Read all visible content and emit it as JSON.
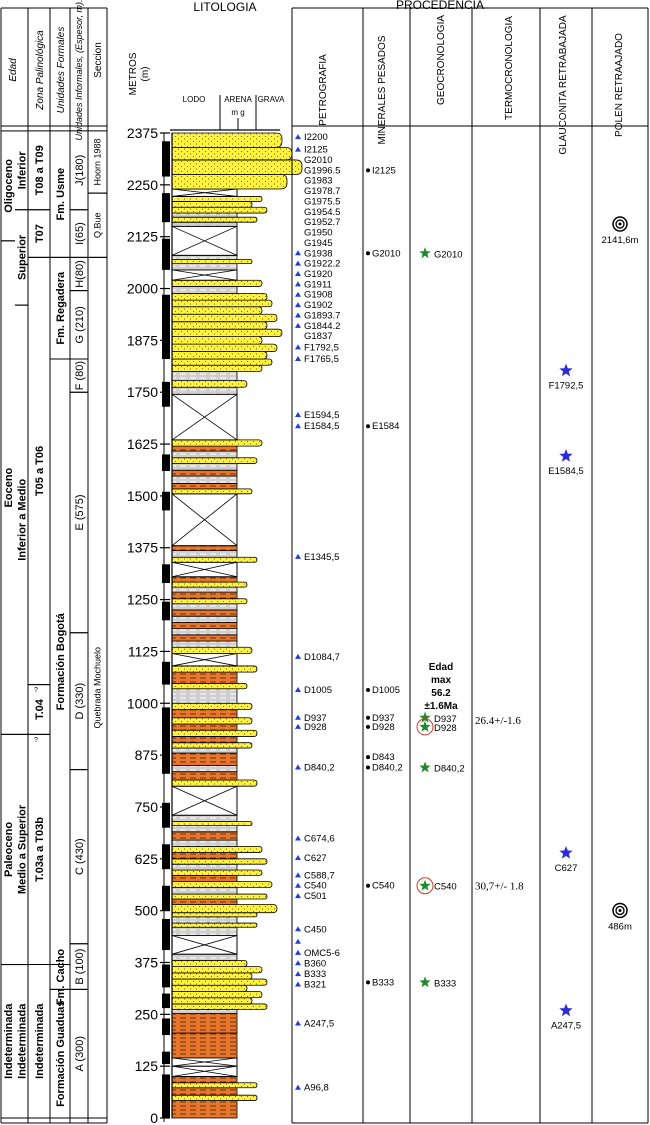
{
  "headers": {
    "litologia": "LITOLOGIA",
    "procedencia": "PROCEDENCIA",
    "edad": "Edad",
    "zona": "Zona Palinológica",
    "formales": "Unidades Formales",
    "informales": "Unidades Informales, (Espesor, m).",
    "seccion": "Seccion",
    "metros": "METROS",
    "metros_unit": "(m)",
    "lodo": "LODO",
    "arena": "ARENA",
    "arena_sub": "m  g",
    "grava": "GRAVA",
    "petrografia": "PETROGRAFIA",
    "minerales": "MINERALES PESADOS",
    "geocronologia": "GEOCRONOLOGIA",
    "termocronologia": "TERMOCRONOLOGIA",
    "glauconita": "GLAUCONITA RETRABAJADA",
    "polen": "POLEN RETRAAJADO"
  },
  "depth_axis": {
    "min": 0,
    "max": 2375,
    "ticks": [
      0,
      125,
      250,
      375,
      500,
      625,
      750,
      875,
      1000,
      1125,
      1250,
      1375,
      1500,
      1625,
      1750,
      1875,
      2000,
      2125,
      2250,
      2375
    ]
  },
  "edad": [
    {
      "label": "Oligoceno",
      "from": 2115,
      "to": 2380
    },
    {
      "label": "Eoceno",
      "from": 925,
      "to": 2115
    },
    {
      "label": "Paleoceno",
      "from": 370,
      "to": 925
    },
    {
      "label": "Indeterminada",
      "from": 0,
      "to": 370
    }
  ],
  "edad_sub": [
    {
      "label": "Inferior",
      "from": 2190,
      "to": 2380
    },
    {
      "label": "Superior",
      "from": 1960,
      "to": 2190
    },
    {
      "label": "Inferior a Medio",
      "from": 925,
      "to": 1960
    },
    {
      "label": "Medio a Superior",
      "from": 370,
      "to": 925
    },
    {
      "label": "Indeterminada",
      "from": 0,
      "to": 370
    }
  ],
  "zonas": [
    {
      "label": "T08 a T09",
      "from": 2190,
      "to": 2380
    },
    {
      "label": "T07",
      "from": 2075,
      "to": 2190
    },
    {
      "label": "T05 a T06",
      "from": 1045,
      "to": 2075
    },
    {
      "label": "T.04",
      "from": 925,
      "to": 1045
    },
    {
      "label": "T.03a a T03b",
      "from": 370,
      "to": 925
    },
    {
      "label": "Indeterminada",
      "from": 0,
      "to": 370
    }
  ],
  "formales": [
    {
      "label": "Fm. Usme",
      "from": 2075,
      "to": 2380
    },
    {
      "label": "Fm. Regadera",
      "from": 1830,
      "to": 2075
    },
    {
      "label": "Formación Bogotá",
      "from": 370,
      "to": 1830
    },
    {
      "label": "Fm. Cacho",
      "from": 310,
      "to": 370
    },
    {
      "label": "Formación Guaduas",
      "from": 0,
      "to": 310
    }
  ],
  "informales": [
    {
      "label": "J(180)",
      "from": 2190,
      "to": 2380
    },
    {
      "label": "I(65)",
      "from": 2075,
      "to": 2190
    },
    {
      "label": "H(80)",
      "from": 1995,
      "to": 2075
    },
    {
      "label": "G (210)",
      "from": 1830,
      "to": 1995
    },
    {
      "label": "F (80)",
      "from": 1750,
      "to": 1830
    },
    {
      "label": "E (575)",
      "from": 1170,
      "to": 1750
    },
    {
      "label": "D (330)",
      "from": 840,
      "to": 1170
    },
    {
      "label": "C (430)",
      "from": 420,
      "to": 840
    },
    {
      "label": "B (100)",
      "from": 310,
      "to": 420
    },
    {
      "label": "A (300)",
      "from": 0,
      "to": 310
    }
  ],
  "secciones": [
    {
      "label": "Hoorn 1988",
      "from": 2230,
      "to": 2380
    },
    {
      "label": "Q.Bue",
      "from": 2075,
      "to": 2230
    },
    {
      "label": "Quebrada Mochuelo",
      "from": 0,
      "to": 2075
    }
  ],
  "small_marks": [
    "?",
    "?"
  ],
  "petrografia": [
    {
      "label": "I2200",
      "depth": 2365,
      "tri": true
    },
    {
      "label": "I2125",
      "depth": 2335,
      "tri": true
    },
    {
      "label": "G2010",
      "depth": 2310,
      "tri": false
    },
    {
      "label": "G1996.5",
      "depth": 2285,
      "tri": false
    },
    {
      "label": "G1983",
      "depth": 2260,
      "tri": false
    },
    {
      "label": "G1978.7",
      "depth": 2235,
      "tri": false
    },
    {
      "label": "G1975.5",
      "depth": 2210,
      "tri": false
    },
    {
      "label": "G1954.5",
      "depth": 2185,
      "tri": false
    },
    {
      "label": "G1952.7",
      "depth": 2160,
      "tri": false
    },
    {
      "label": "G1950",
      "depth": 2135,
      "tri": false
    },
    {
      "label": "G1945",
      "depth": 2110,
      "tri": false
    },
    {
      "label": "G1938",
      "depth": 2085,
      "tri": true
    },
    {
      "label": "G1922.2",
      "depth": 2060,
      "tri": true
    },
    {
      "label": "G1920",
      "depth": 2035,
      "tri": true
    },
    {
      "label": "G1911",
      "depth": 2010,
      "tri": true
    },
    {
      "label": "G1908",
      "depth": 1985,
      "tri": true
    },
    {
      "label": "G1902",
      "depth": 1960,
      "tri": true
    },
    {
      "label": "G1893.7",
      "depth": 1935,
      "tri": true
    },
    {
      "label": "G1844.2",
      "depth": 1910,
      "tri": true
    },
    {
      "label": "G1837",
      "depth": 1885,
      "tri": false
    },
    {
      "label": "F1792,5",
      "depth": 1858,
      "tri": true
    },
    {
      "label": "F1765,5",
      "depth": 1830,
      "tri": true
    },
    {
      "label": "E1594,5",
      "depth": 1695,
      "tri": true
    },
    {
      "label": "E1584,5",
      "depth": 1668,
      "tri": true
    },
    {
      "label": "E1345,5",
      "depth": 1353,
      "tri": true
    },
    {
      "label": "D1084,7",
      "depth": 1112,
      "tri": true
    },
    {
      "label": "D1005",
      "depth": 1032,
      "tri": true
    },
    {
      "label": "D937",
      "depth": 965,
      "tri": true
    },
    {
      "label": "D928",
      "depth": 943,
      "tri": true
    },
    {
      "label": "D840,2",
      "depth": 845,
      "tri": true
    },
    {
      "label": "C674,6",
      "depth": 674,
      "tri": true
    },
    {
      "label": "C627",
      "depth": 627,
      "tri": true
    },
    {
      "label": "C588,7",
      "depth": 585,
      "tri": true
    },
    {
      "label": "C540",
      "depth": 560,
      "tri": true
    },
    {
      "label": "C501",
      "depth": 535,
      "tri": true
    },
    {
      "label": "C450",
      "depth": 455,
      "tri": true
    },
    {
      "label": "",
      "depth": 425,
      "tri": true
    },
    {
      "label": "OMC5-6",
      "depth": 398,
      "tri": true
    },
    {
      "label": "B360",
      "depth": 373,
      "tri": true
    },
    {
      "label": "B333",
      "depth": 347,
      "tri": true
    },
    {
      "label": "B321",
      "depth": 322,
      "tri": true
    },
    {
      "label": "A247,5",
      "depth": 228,
      "tri": true
    },
    {
      "label": "A96,8",
      "depth": 73,
      "tri": true
    }
  ],
  "minerales": [
    {
      "label": "I2125",
      "depth": 2285
    },
    {
      "label": "G2010",
      "depth": 2085
    },
    {
      "label": "E1584",
      "depth": 1668
    },
    {
      "label": "D1005",
      "depth": 1032
    },
    {
      "label": "D937",
      "depth": 965
    },
    {
      "label": "D928",
      "depth": 943
    },
    {
      "label": "D843",
      "depth": 870
    },
    {
      "label": "D840,2",
      "depth": 845
    },
    {
      "label": "C540",
      "depth": 560
    },
    {
      "label": "B333",
      "depth": 327
    }
  ],
  "geocronologia": [
    {
      "label": "G2010",
      "depth": 2085,
      "circled": false
    },
    {
      "label": "D937",
      "depth": 965,
      "circled": false
    },
    {
      "label": "D928",
      "depth": 943,
      "circled": true
    },
    {
      "label": "D840,2",
      "depth": 845,
      "circled": false
    },
    {
      "label": "C540",
      "depth": 560,
      "circled": true
    },
    {
      "label": "B333",
      "depth": 327,
      "circled": false
    }
  ],
  "edad_max": {
    "line1": "Edad",
    "line2": "max",
    "line3": "56.2",
    "line4": "±1.6Ma"
  },
  "termocronologia": [
    {
      "label": "26.4+/-1.6",
      "depth": 960
    },
    {
      "label": "30,7+/- 1.8",
      "depth": 560
    }
  ],
  "glauconita": [
    {
      "label": "F1792,5",
      "depth": 1790
    },
    {
      "label": "E1584,5",
      "depth": 1584
    },
    {
      "label": "C627",
      "depth": 627
    },
    {
      "label": "A247,5",
      "depth": 247
    }
  ],
  "polen": [
    {
      "label": "2141,6m",
      "depth": 2141
    },
    {
      "label": "486m",
      "depth": 486
    }
  ],
  "colors": {
    "sand": "#fff23a",
    "mud": "#c8c8c8",
    "orange": "#e8752a",
    "triangle": "#1f3fd6",
    "star_green": "#1e8a2a",
    "star_blue": "#2b2bdd",
    "circle_red": "#d23a2a"
  },
  "lithology": [
    {
      "from": 0,
      "to": 42,
      "type": "orange",
      "w": 1.3
    },
    {
      "from": 42,
      "to": 55,
      "type": "sand",
      "w": 1.7
    },
    {
      "from": 55,
      "to": 73,
      "type": "orange",
      "w": 1.3
    },
    {
      "from": 73,
      "to": 85,
      "type": "sand",
      "w": 1.7
    },
    {
      "from": 85,
      "to": 100,
      "type": "orange",
      "w": 1.3
    },
    {
      "from": 100,
      "to": 125,
      "type": "cover",
      "w": 1.3
    },
    {
      "from": 125,
      "to": 145,
      "type": "cover",
      "w": 1.3
    },
    {
      "from": 145,
      "to": 205,
      "type": "orange",
      "w": 1.3
    },
    {
      "from": 205,
      "to": 252,
      "type": "orange",
      "w": 1.3
    },
    {
      "from": 252,
      "to": 262,
      "type": "mud",
      "w": 1.3
    },
    {
      "from": 262,
      "to": 275,
      "type": "sand",
      "w": 1.9
    },
    {
      "from": 275,
      "to": 290,
      "type": "sand",
      "w": 1.6
    },
    {
      "from": 290,
      "to": 305,
      "type": "sand",
      "w": 1.8
    },
    {
      "from": 305,
      "to": 320,
      "type": "sand",
      "w": 1.5
    },
    {
      "from": 320,
      "to": 335,
      "type": "sand",
      "w": 1.9
    },
    {
      "from": 335,
      "to": 350,
      "type": "sand",
      "w": 1.6
    },
    {
      "from": 350,
      "to": 365,
      "type": "sand",
      "w": 1.8
    },
    {
      "from": 365,
      "to": 380,
      "type": "sand",
      "w": 1.5
    },
    {
      "from": 380,
      "to": 395,
      "type": "mud",
      "w": 1.3
    },
    {
      "from": 395,
      "to": 440,
      "type": "cover",
      "w": 1.3
    },
    {
      "from": 440,
      "to": 460,
      "type": "mud",
      "w": 1.3
    },
    {
      "from": 460,
      "to": 470,
      "type": "sand",
      "w": 1.7
    },
    {
      "from": 470,
      "to": 485,
      "type": "mud",
      "w": 1.3
    },
    {
      "from": 485,
      "to": 495,
      "type": "sand",
      "w": 1.7
    },
    {
      "from": 495,
      "to": 515,
      "type": "sand",
      "w": 2.1
    },
    {
      "from": 515,
      "to": 528,
      "type": "orange",
      "w": 1.3
    },
    {
      "from": 528,
      "to": 540,
      "type": "sand",
      "w": 1.9
    },
    {
      "from": 540,
      "to": 556,
      "type": "mud",
      "w": 1.3
    },
    {
      "from": 556,
      "to": 570,
      "type": "sand",
      "w": 2.0
    },
    {
      "from": 570,
      "to": 585,
      "type": "orange",
      "w": 1.3
    },
    {
      "from": 585,
      "to": 598,
      "type": "sand",
      "w": 1.8
    },
    {
      "from": 598,
      "to": 612,
      "type": "mud",
      "w": 1.3
    },
    {
      "from": 612,
      "to": 625,
      "type": "sand",
      "w": 1.9
    },
    {
      "from": 625,
      "to": 640,
      "type": "orange",
      "w": 1.3
    },
    {
      "from": 640,
      "to": 655,
      "type": "sand",
      "w": 1.8
    },
    {
      "from": 655,
      "to": 670,
      "type": "mud",
      "w": 1.3
    },
    {
      "from": 670,
      "to": 690,
      "type": "orange",
      "w": 1.3
    },
    {
      "from": 690,
      "to": 705,
      "type": "mud",
      "w": 1.3
    },
    {
      "from": 705,
      "to": 715,
      "type": "sand",
      "w": 1.6
    },
    {
      "from": 715,
      "to": 730,
      "type": "mud",
      "w": 1.3
    },
    {
      "from": 730,
      "to": 800,
      "type": "cover",
      "w": 1.3
    },
    {
      "from": 800,
      "to": 815,
      "type": "sand",
      "w": 1.7
    },
    {
      "from": 815,
      "to": 835,
      "type": "orange",
      "w": 1.3
    },
    {
      "from": 835,
      "to": 850,
      "type": "mud",
      "w": 1.3
    },
    {
      "from": 850,
      "to": 880,
      "type": "orange",
      "w": 1.3
    },
    {
      "from": 880,
      "to": 892,
      "type": "mud",
      "w": 1.3
    },
    {
      "from": 892,
      "to": 905,
      "type": "sand",
      "w": 1.6
    },
    {
      "from": 905,
      "to": 920,
      "type": "orange",
      "w": 1.3
    },
    {
      "from": 920,
      "to": 935,
      "type": "sand",
      "w": 1.7
    },
    {
      "from": 935,
      "to": 950,
      "type": "orange",
      "w": 1.3
    },
    {
      "from": 950,
      "to": 965,
      "type": "sand",
      "w": 1.6
    },
    {
      "from": 965,
      "to": 985,
      "type": "orange",
      "w": 1.3
    },
    {
      "from": 985,
      "to": 1000,
      "type": "sand",
      "w": 1.6
    },
    {
      "from": 1000,
      "to": 1035,
      "type": "mud",
      "w": 1.3
    },
    {
      "from": 1035,
      "to": 1048,
      "type": "sand",
      "w": 1.5
    },
    {
      "from": 1048,
      "to": 1075,
      "type": "orange",
      "w": 1.3
    },
    {
      "from": 1075,
      "to": 1090,
      "type": "sand",
      "w": 1.7
    },
    {
      "from": 1090,
      "to": 1120,
      "type": "cover",
      "w": 1.3
    },
    {
      "from": 1120,
      "to": 1135,
      "type": "sand",
      "w": 1.6
    },
    {
      "from": 1135,
      "to": 1150,
      "type": "mud",
      "w": 1.3
    },
    {
      "from": 1150,
      "to": 1165,
      "type": "orange",
      "w": 1.3
    },
    {
      "from": 1165,
      "to": 1180,
      "type": "mud",
      "w": 1.3
    },
    {
      "from": 1180,
      "to": 1195,
      "type": "orange",
      "w": 1.3
    },
    {
      "from": 1195,
      "to": 1210,
      "type": "mud",
      "w": 1.3
    },
    {
      "from": 1210,
      "to": 1225,
      "type": "orange",
      "w": 1.3
    },
    {
      "from": 1225,
      "to": 1240,
      "type": "mud",
      "w": 1.3
    },
    {
      "from": 1240,
      "to": 1252,
      "type": "sand",
      "w": 1.5
    },
    {
      "from": 1252,
      "to": 1268,
      "type": "orange",
      "w": 1.3
    },
    {
      "from": 1268,
      "to": 1280,
      "type": "mud",
      "w": 1.3
    },
    {
      "from": 1280,
      "to": 1292,
      "type": "sand",
      "w": 1.5
    },
    {
      "from": 1292,
      "to": 1305,
      "type": "orange",
      "w": 1.3
    },
    {
      "from": 1305,
      "to": 1340,
      "type": "cover",
      "w": 1.3
    },
    {
      "from": 1340,
      "to": 1352,
      "type": "sand",
      "w": 1.7
    },
    {
      "from": 1352,
      "to": 1368,
      "type": "mud",
      "w": 1.3
    },
    {
      "from": 1368,
      "to": 1380,
      "type": "orange",
      "w": 1.3
    },
    {
      "from": 1380,
      "to": 1505,
      "type": "cover",
      "w": 1.3
    },
    {
      "from": 1505,
      "to": 1517,
      "type": "sand",
      "w": 1.6
    },
    {
      "from": 1517,
      "to": 1530,
      "type": "orange",
      "w": 1.3
    },
    {
      "from": 1530,
      "to": 1548,
      "type": "mud",
      "w": 1.3
    },
    {
      "from": 1548,
      "to": 1562,
      "type": "orange",
      "w": 1.3
    },
    {
      "from": 1562,
      "to": 1578,
      "type": "mud",
      "w": 1.3
    },
    {
      "from": 1578,
      "to": 1592,
      "type": "sand",
      "w": 1.7
    },
    {
      "from": 1592,
      "to": 1608,
      "type": "mud",
      "w": 1.3
    },
    {
      "from": 1608,
      "to": 1620,
      "type": "orange",
      "w": 1.3
    },
    {
      "from": 1620,
      "to": 1635,
      "type": "sand",
      "w": 1.8
    },
    {
      "from": 1635,
      "to": 1745,
      "type": "cover",
      "w": 1.3
    },
    {
      "from": 1745,
      "to": 1762,
      "type": "mud",
      "w": 1.3
    },
    {
      "from": 1762,
      "to": 1778,
      "type": "sand",
      "w": 1.5
    },
    {
      "from": 1778,
      "to": 1800,
      "type": "mud",
      "w": 1.3
    },
    {
      "from": 1800,
      "to": 1815,
      "type": "sand",
      "w": 1.8
    },
    {
      "from": 1815,
      "to": 1830,
      "type": "sand",
      "w": 2.0
    },
    {
      "from": 1830,
      "to": 1848,
      "type": "sand",
      "w": 1.9
    },
    {
      "from": 1848,
      "to": 1866,
      "type": "sand",
      "w": 2.1
    },
    {
      "from": 1866,
      "to": 1884,
      "type": "sand",
      "w": 1.8
    },
    {
      "from": 1884,
      "to": 1902,
      "type": "sand",
      "w": 2.2
    },
    {
      "from": 1902,
      "to": 1920,
      "type": "sand",
      "w": 1.9
    },
    {
      "from": 1920,
      "to": 1938,
      "type": "sand",
      "w": 2.1
    },
    {
      "from": 1938,
      "to": 1956,
      "type": "sand",
      "w": 1.8
    },
    {
      "from": 1956,
      "to": 1972,
      "type": "sand",
      "w": 2.0
    },
    {
      "from": 1972,
      "to": 1988,
      "type": "sand",
      "w": 1.9
    },
    {
      "from": 1988,
      "to": 2005,
      "type": "mud",
      "w": 1.3
    },
    {
      "from": 2005,
      "to": 2020,
      "type": "sand",
      "w": 1.8
    },
    {
      "from": 2020,
      "to": 2045,
      "type": "cover",
      "w": 1.3
    },
    {
      "from": 2045,
      "to": 2060,
      "type": "mud",
      "w": 1.3
    },
    {
      "from": 2060,
      "to": 2070,
      "type": "sand",
      "w": 1.6
    },
    {
      "from": 2070,
      "to": 2080,
      "type": "mud",
      "w": 1.3
    },
    {
      "from": 2080,
      "to": 2150,
      "type": "cover",
      "w": 1.3
    },
    {
      "from": 2150,
      "to": 2160,
      "type": "mud",
      "w": 1.3
    },
    {
      "from": 2160,
      "to": 2172,
      "type": "sand",
      "w": 1.7
    },
    {
      "from": 2172,
      "to": 2182,
      "type": "mud",
      "w": 1.3
    },
    {
      "from": 2182,
      "to": 2196,
      "type": "sand",
      "w": 1.9
    },
    {
      "from": 2196,
      "to": 2210,
      "type": "sand",
      "w": 1.6
    },
    {
      "from": 2210,
      "to": 2222,
      "type": "sand",
      "w": 1.8
    },
    {
      "from": 2222,
      "to": 2240,
      "type": "cover",
      "w": 1.3
    },
    {
      "from": 2240,
      "to": 2275,
      "type": "sand",
      "w": 2.3
    },
    {
      "from": 2275,
      "to": 2310,
      "type": "sand",
      "w": 2.6
    },
    {
      "from": 2310,
      "to": 2340,
      "type": "sand",
      "w": 2.4
    },
    {
      "from": 2340,
      "to": 2375,
      "type": "sand",
      "w": 2.2
    }
  ],
  "black_bars": [
    [
      0,
      105
    ],
    [
      130,
      160
    ],
    [
      200,
      240
    ],
    [
      265,
      300
    ],
    [
      315,
      370
    ],
    [
      405,
      480
    ],
    [
      500,
      560
    ],
    [
      600,
      660
    ],
    [
      700,
      760
    ],
    [
      830,
      990
    ],
    [
      1045,
      1100
    ],
    [
      1200,
      1245
    ],
    [
      1290,
      1335
    ],
    [
      1465,
      1510
    ],
    [
      1560,
      1600
    ],
    [
      1715,
      1775
    ],
    [
      1830,
      1985
    ],
    [
      2045,
      2120
    ],
    [
      2160,
      2230
    ],
    [
      2270,
      2355
    ]
  ]
}
